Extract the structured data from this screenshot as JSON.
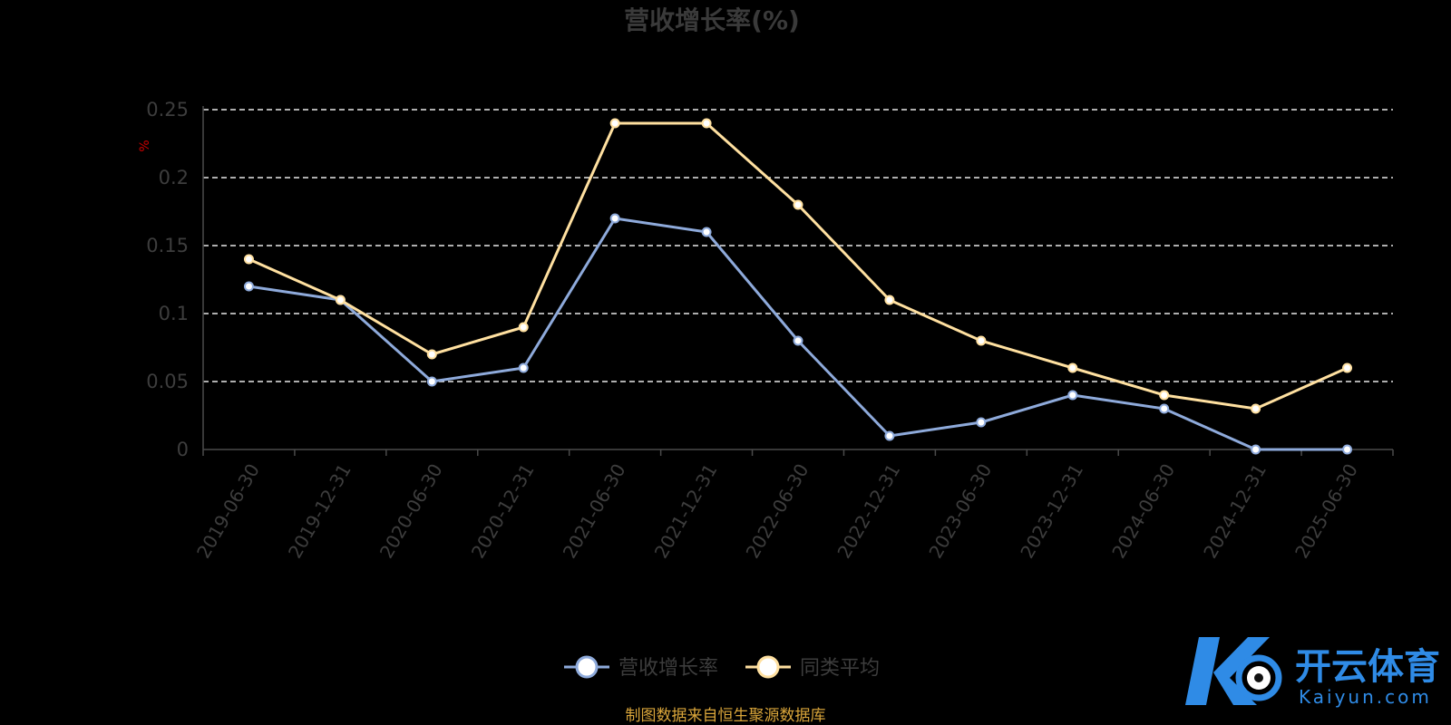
{
  "chart_data": {
    "type": "line",
    "title": "营收增长率(%)",
    "unit_label": "%",
    "x": [
      "2019-06-30",
      "2019-12-31",
      "2020-06-30",
      "2020-12-31",
      "2021-06-30",
      "2021-12-31",
      "2022-06-30",
      "2022-12-31",
      "2023-06-30",
      "2023-12-31",
      "2024-06-30",
      "2024-12-31",
      "2025-06-30"
    ],
    "y_ticks": [
      "0",
      "0.05",
      "0.1",
      "0.15",
      "0.2",
      "0.25"
    ],
    "ylim": [
      0,
      0.25
    ],
    "grid": "horizontal dashed",
    "legend_position": "bottom-center",
    "series": [
      {
        "name": "营收增长率",
        "color": "#8eaadb",
        "values": [
          0.12,
          0.11,
          0.05,
          0.06,
          0.17,
          0.16,
          0.08,
          0.01,
          0.02,
          0.04,
          0.03,
          0.0,
          0.0
        ]
      },
      {
        "name": "同类平均",
        "color": "#ffe0a0",
        "values": [
          0.14,
          0.11,
          0.07,
          0.09,
          0.24,
          0.24,
          0.18,
          0.11,
          0.08,
          0.06,
          0.04,
          0.03,
          0.06
        ]
      }
    ]
  },
  "source_note": "制图数据来自恒生聚源数据库",
  "watermark": {
    "name_cn": "开云体育",
    "name_en": "Kaiyun.com",
    "color": "#2f8be6"
  }
}
